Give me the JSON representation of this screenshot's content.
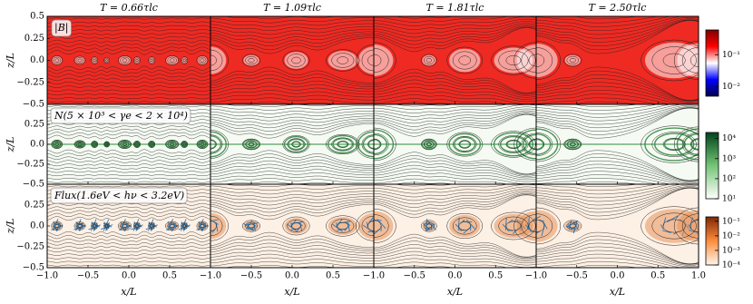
{
  "figure": {
    "columns": [
      "T = 0.66τlc",
      "T = 1.09τlc",
      "T = 1.81τlc",
      "T = 2.50τlc"
    ],
    "rows": [
      {
        "label": "|B|",
        "clim": [
          0.005,
          0.6
        ],
        "cticks": [
          {
            "value": 0.1,
            "label": "10⁻¹"
          },
          {
            "value": 0.01,
            "label": "10⁻²"
          }
        ],
        "colors": [
          "#00004c",
          "#0000ff",
          "#ffffff",
          "#ff0000",
          "#7f0000"
        ]
      },
      {
        "label": "N(5 × 10³ < γe < 2 × 10⁴)",
        "clim": [
          10,
          20000
        ],
        "cticks": [
          {
            "value": 10000,
            "label": "10⁴"
          },
          {
            "value": 1000,
            "label": "10³"
          },
          {
            "value": 100,
            "label": "10²"
          },
          {
            "value": 10,
            "label": "10¹"
          }
        ],
        "colors": [
          "#ffffff",
          "#74c476",
          "#00441b"
        ]
      },
      {
        "label": "Flux(1.6eV < hν < 3.2eV)",
        "clim": [
          0.0001,
          0.2
        ],
        "cticks": [
          {
            "value": 0.1,
            "label": "10⁻¹"
          },
          {
            "value": 0.01,
            "label": "10⁻²"
          },
          {
            "value": 0.001,
            "label": "10⁻³"
          },
          {
            "value": 0.0001,
            "label": "10⁻⁴"
          }
        ],
        "colors": [
          "#fff5eb",
          "#fd8d3c",
          "#7f2704"
        ]
      }
    ],
    "log_colorbar": true,
    "xlabel": "x/L",
    "ylabel": "z/L",
    "xlim": [
      -1,
      1
    ],
    "ylim": [
      -0.5,
      0.5
    ],
    "xticks": [
      {
        "value": -1,
        "label": "−1.0"
      },
      {
        "value": -0.5,
        "label": "−0.5"
      },
      {
        "value": 0,
        "label": "0.0"
      },
      0.5,
      {
        "value": 1,
        "label": "1.0"
      }
    ],
    "yticks": [
      {
        "value": -0.5,
        "label": "−0.5"
      },
      {
        "value": -0.25,
        "label": "−0.25"
      },
      {
        "value": 0,
        "label": "0.0"
      },
      0.25,
      0.5
    ]
  }
}
